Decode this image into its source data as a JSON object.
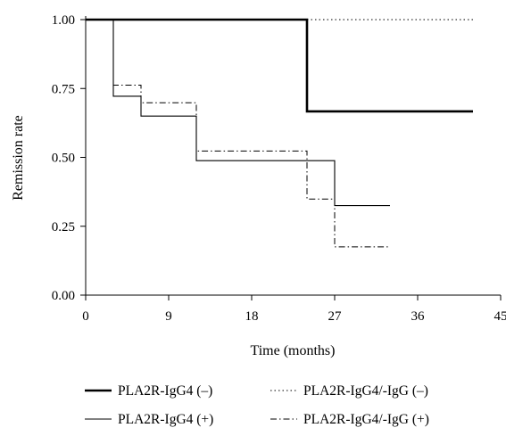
{
  "chart_data": {
    "type": "line",
    "step": true,
    "xlabel": "Time (months)",
    "ylabel": "Remission rate",
    "xlim": [
      0,
      45
    ],
    "ylim": [
      0,
      1
    ],
    "xticks": [
      0,
      9,
      18,
      27,
      36,
      45
    ],
    "yticks": [
      "0.00",
      "0.25",
      "0.50",
      "0.75",
      "1.00"
    ],
    "grid": false,
    "legend_position": "bottom",
    "series": [
      {
        "name": "PLA2R-IgG4 (–)",
        "style": "thick-solid",
        "color": "#000000",
        "points": [
          [
            0,
            1.0
          ],
          [
            24,
            1.0
          ],
          [
            24,
            0.667
          ],
          [
            42,
            0.667
          ]
        ]
      },
      {
        "name": "PLA2R-IgG4/-IgG (–)",
        "style": "dotted",
        "color": "#000000",
        "points": [
          [
            24,
            1.0
          ],
          [
            42,
            1.0
          ]
        ]
      },
      {
        "name": "PLA2R-IgG4 (+)",
        "style": "thin-solid",
        "color": "#000000",
        "points": [
          [
            3,
            1.0
          ],
          [
            3,
            0.722
          ],
          [
            6,
            0.722
          ],
          [
            6,
            0.65
          ],
          [
            12,
            0.65
          ],
          [
            12,
            0.488
          ],
          [
            27,
            0.488
          ],
          [
            27,
            0.325
          ],
          [
            33,
            0.325
          ]
        ]
      },
      {
        "name": "PLA2R-IgG4/-IgG (+)",
        "style": "dash-dot",
        "color": "#000000",
        "points": [
          [
            3,
            1.0
          ],
          [
            3,
            0.762
          ],
          [
            6,
            0.762
          ],
          [
            6,
            0.698
          ],
          [
            12,
            0.698
          ],
          [
            12,
            0.523
          ],
          [
            24,
            0.523
          ],
          [
            24,
            0.349
          ],
          [
            27,
            0.349
          ],
          [
            27,
            0.175
          ],
          [
            33,
            0.175
          ]
        ]
      }
    ]
  }
}
